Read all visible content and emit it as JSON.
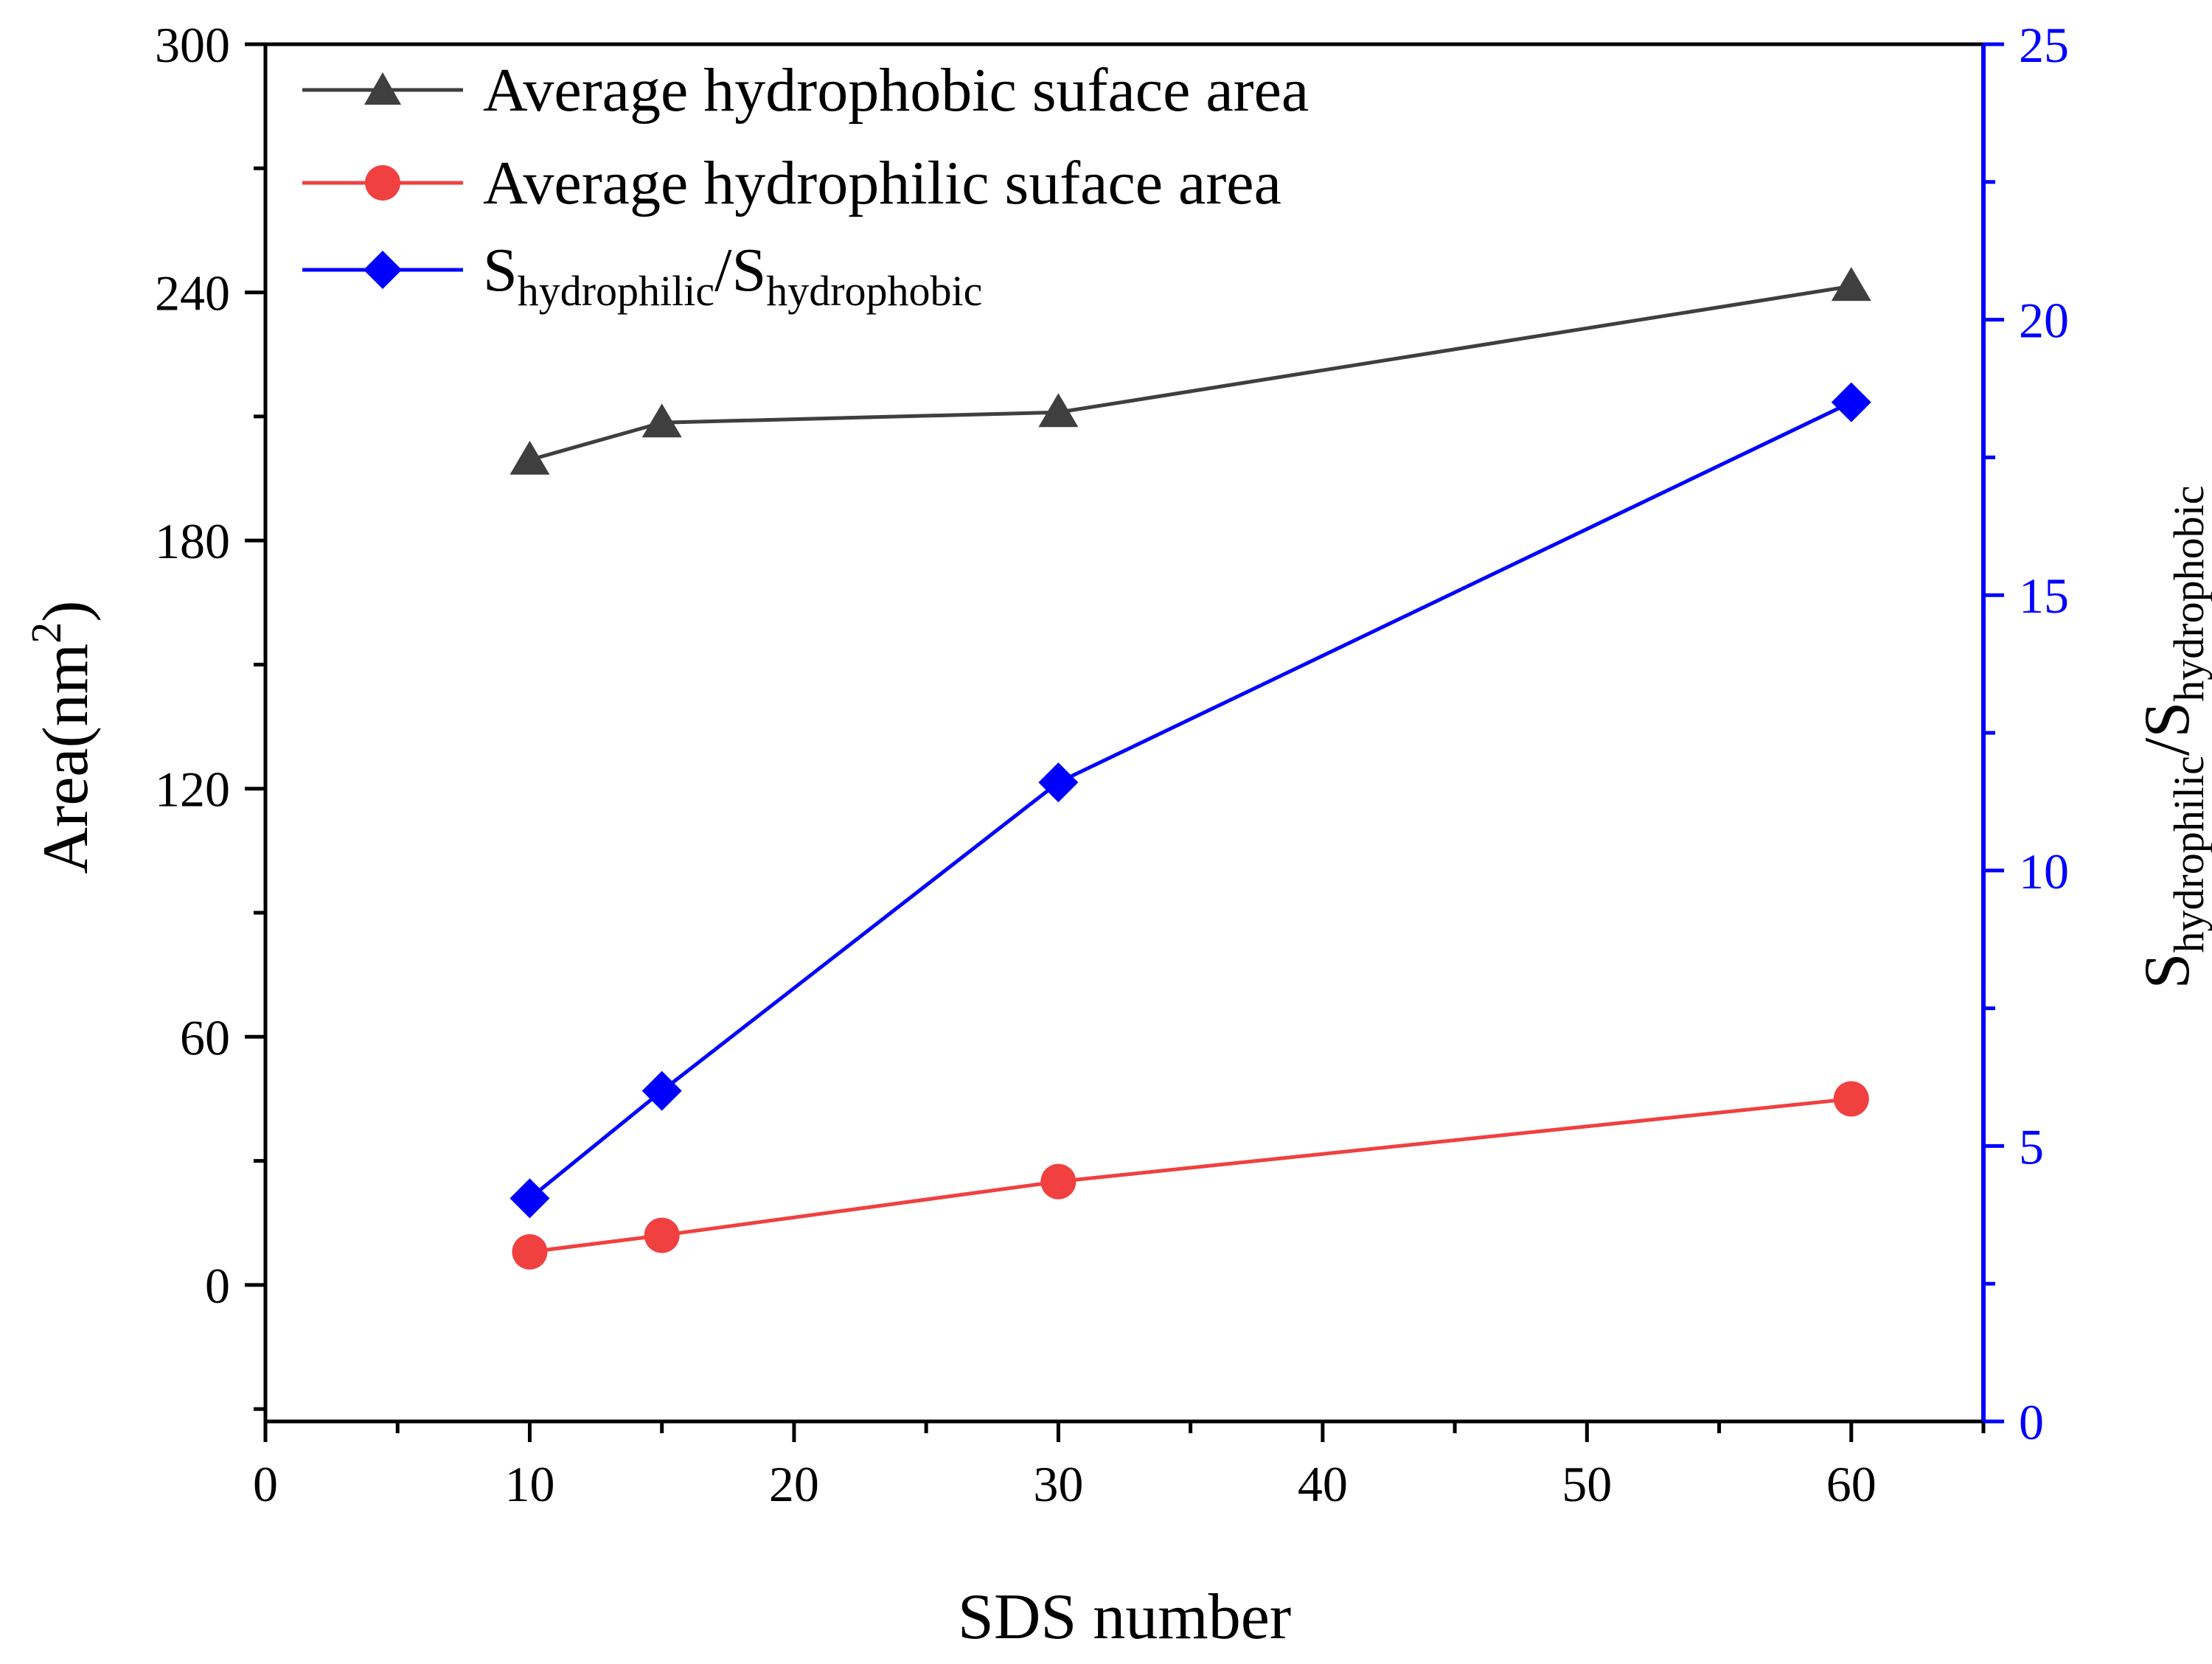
{
  "chart_data": {
    "type": "line",
    "x": [
      10,
      15,
      30,
      60
    ],
    "xlabel": "SDS number",
    "xlim": [
      0,
      65
    ],
    "x_ticks": [
      "0",
      "10",
      "20",
      "30",
      "40",
      "50",
      "60"
    ],
    "left_axis": {
      "label_main": "Area(nm",
      "label_sup": "2",
      "label_close": ")",
      "ylim": [
        -33,
        300
      ],
      "ticks": [
        "0",
        "60",
        "120",
        "180",
        "240",
        "300"
      ]
    },
    "right_axis": {
      "label_s1": "S",
      "label_sub1": "hydrophilic",
      "label_slash": "/S",
      "label_sub2": "hydrophobic",
      "ylim": [
        0,
        25
      ],
      "ticks": [
        "0",
        "5",
        "10",
        "15",
        "20",
        "25"
      ],
      "color": "#0000ff"
    },
    "series": [
      {
        "name": "Average hydrophobic suface area",
        "axis": "left",
        "marker": "triangle",
        "color": "#3f3f3f",
        "values": [
          199.5,
          208.5,
          211,
          241.5
        ]
      },
      {
        "name": "Average hydrophilic suface area",
        "axis": "left",
        "marker": "circle",
        "color": "#f04040",
        "values": [
          8,
          12,
          25,
          45
        ]
      },
      {
        "name_s1": "S",
        "name_sub1": "hydrophilic",
        "name_slash": "/S",
        "name_sub2": "hydrophobic",
        "axis": "right",
        "marker": "diamond",
        "color": "#0000ff",
        "values": [
          4.05,
          6.0,
          11.6,
          18.5
        ]
      }
    ]
  }
}
